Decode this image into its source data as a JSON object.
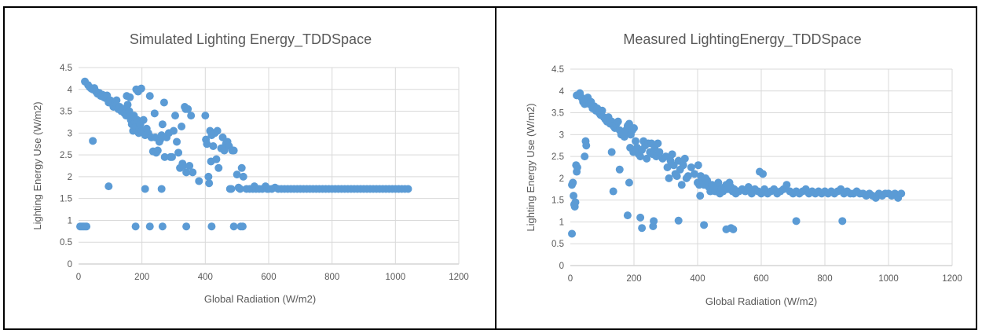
{
  "chart_data": [
    {
      "type": "scatter",
      "title": "Simulated Lighting Energy_TDDSpace",
      "xlabel": "Global Radiation (W/m2)",
      "ylabel": "Lighting Energy Use (W/m2)",
      "xlim": [
        0,
        1200
      ],
      "ylim": [
        0,
        4.5
      ],
      "xticks": [
        "0",
        "200",
        "400",
        "600",
        "800",
        "1000",
        "1200"
      ],
      "yticks": [
        "0",
        "0.5",
        "1",
        "1.5",
        "2",
        "2.5",
        "3",
        "3.5",
        "4",
        "4.5"
      ],
      "grid": true,
      "marker_color": "#5b9bd5",
      "points": [
        [
          20,
          4.18
        ],
        [
          30,
          4.1
        ],
        [
          35,
          4.05
        ],
        [
          40,
          4.02
        ],
        [
          45,
          4.0
        ],
        [
          50,
          4.03
        ],
        [
          55,
          3.95
        ],
        [
          60,
          3.9
        ],
        [
          65,
          3.92
        ],
        [
          70,
          3.85
        ],
        [
          75,
          3.88
        ],
        [
          80,
          3.82
        ],
        [
          85,
          3.8
        ],
        [
          90,
          3.86
        ],
        [
          95,
          3.7
        ],
        [
          100,
          3.75
        ],
        [
          105,
          3.68
        ],
        [
          110,
          3.6
        ],
        [
          115,
          3.7
        ],
        [
          120,
          3.75
        ],
        [
          125,
          3.55
        ],
        [
          130,
          3.6
        ],
        [
          135,
          3.5
        ],
        [
          140,
          3.55
        ],
        [
          145,
          3.45
        ],
        [
          150,
          3.4
        ],
        [
          152,
          3.85
        ],
        [
          155,
          3.65
        ],
        [
          160,
          3.5
        ],
        [
          162,
          3.82
        ],
        [
          165,
          3.3
        ],
        [
          168,
          3.2
        ],
        [
          170,
          3.35
        ],
        [
          172,
          3.05
        ],
        [
          175,
          3.4
        ],
        [
          178,
          3.25
        ],
        [
          180,
          3.15
        ],
        [
          182,
          4.0
        ],
        [
          185,
          3.3
        ],
        [
          188,
          3.95
        ],
        [
          190,
          3.0
        ],
        [
          192,
          3.1
        ],
        [
          195,
          3.2
        ],
        [
          198,
          4.02
        ],
        [
          200,
          3.05
        ],
        [
          205,
          3.3
        ],
        [
          210,
          2.95
        ],
        [
          215,
          3.1
        ],
        [
          220,
          3.0
        ],
        [
          225,
          3.85
        ],
        [
          230,
          2.9
        ],
        [
          235,
          2.58
        ],
        [
          240,
          3.45
        ],
        [
          242,
          2.9
        ],
        [
          245,
          2.55
        ],
        [
          250,
          2.6
        ],
        [
          255,
          2.8
        ],
        [
          258,
          2.85
        ],
        [
          262,
          2.95
        ],
        [
          265,
          3.2
        ],
        [
          270,
          3.7
        ],
        [
          272,
          2.45
        ],
        [
          278,
          2.9
        ],
        [
          285,
          3.0
        ],
        [
          290,
          2.45
        ],
        [
          295,
          2.45
        ],
        [
          300,
          3.05
        ],
        [
          305,
          3.4
        ],
        [
          310,
          2.8
        ],
        [
          315,
          2.55
        ],
        [
          320,
          2.2
        ],
        [
          325,
          3.15
        ],
        [
          328,
          2.3
        ],
        [
          330,
          2.25
        ],
        [
          335,
          3.6
        ],
        [
          338,
          3.55
        ],
        [
          340,
          2.1
        ],
        [
          345,
          3.55
        ],
        [
          350,
          2.25
        ],
        [
          355,
          3.4
        ],
        [
          360,
          2.1
        ],
        [
          380,
          1.9
        ],
        [
          400,
          3.4
        ],
        [
          402,
          2.85
        ],
        [
          405,
          2.75
        ],
        [
          410,
          2.0
        ],
        [
          412,
          1.85
        ],
        [
          415,
          3.05
        ],
        [
          418,
          2.35
        ],
        [
          420,
          2.95
        ],
        [
          425,
          2.7
        ],
        [
          430,
          3.0
        ],
        [
          435,
          2.4
        ],
        [
          438,
          3.05
        ],
        [
          442,
          2.2
        ],
        [
          450,
          2.65
        ],
        [
          455,
          2.9
        ],
        [
          460,
          2.6
        ],
        [
          465,
          2.75
        ],
        [
          470,
          2.8
        ],
        [
          475,
          2.7
        ],
        [
          478,
          1.72
        ],
        [
          482,
          1.72
        ],
        [
          485,
          2.6
        ],
        [
          490,
          2.6
        ],
        [
          500,
          2.05
        ],
        [
          505,
          1.75
        ],
        [
          510,
          1.72
        ],
        [
          515,
          2.2
        ],
        [
          520,
          2.0
        ],
        [
          530,
          1.72
        ],
        [
          540,
          1.72
        ],
        [
          550,
          1.72
        ],
        [
          555,
          1.78
        ],
        [
          560,
          1.72
        ],
        [
          570,
          1.72
        ],
        [
          580,
          1.72
        ],
        [
          590,
          1.78
        ],
        [
          595,
          1.72
        ],
        [
          600,
          1.72
        ],
        [
          610,
          1.72
        ],
        [
          620,
          1.75
        ],
        [
          630,
          1.72
        ],
        [
          640,
          1.72
        ],
        [
          650,
          1.72
        ],
        [
          660,
          1.72
        ],
        [
          670,
          1.72
        ],
        [
          680,
          1.72
        ],
        [
          690,
          1.72
        ],
        [
          700,
          1.72
        ],
        [
          710,
          1.72
        ],
        [
          720,
          1.72
        ],
        [
          730,
          1.72
        ],
        [
          740,
          1.72
        ],
        [
          750,
          1.72
        ],
        [
          760,
          1.72
        ],
        [
          770,
          1.72
        ],
        [
          780,
          1.72
        ],
        [
          790,
          1.72
        ],
        [
          800,
          1.72
        ],
        [
          810,
          1.72
        ],
        [
          820,
          1.72
        ],
        [
          830,
          1.72
        ],
        [
          840,
          1.72
        ],
        [
          850,
          1.72
        ],
        [
          860,
          1.72
        ],
        [
          870,
          1.72
        ],
        [
          880,
          1.72
        ],
        [
          890,
          1.72
        ],
        [
          900,
          1.72
        ],
        [
          910,
          1.72
        ],
        [
          920,
          1.72
        ],
        [
          930,
          1.72
        ],
        [
          940,
          1.72
        ],
        [
          950,
          1.72
        ],
        [
          960,
          1.72
        ],
        [
          970,
          1.72
        ],
        [
          980,
          1.72
        ],
        [
          990,
          1.72
        ],
        [
          1000,
          1.72
        ],
        [
          1010,
          1.72
        ],
        [
          1020,
          1.72
        ],
        [
          1030,
          1.72
        ],
        [
          1040,
          1.72
        ],
        [
          45,
          2.82
        ],
        [
          95,
          1.78
        ],
        [
          210,
          1.72
        ],
        [
          262,
          1.72
        ],
        [
          5,
          0.86
        ],
        [
          10,
          0.86
        ],
        [
          15,
          0.86
        ],
        [
          20,
          0.86
        ],
        [
          25,
          0.86
        ],
        [
          180,
          0.86
        ],
        [
          225,
          0.86
        ],
        [
          265,
          0.86
        ],
        [
          340,
          0.86
        ],
        [
          420,
          0.86
        ],
        [
          490,
          0.86
        ],
        [
          512,
          0.86
        ],
        [
          518,
          0.86
        ]
      ]
    },
    {
      "type": "scatter",
      "title": "Measured LightingEnergy_TDDSpace",
      "xlabel": "Global Radiation (W/m2)",
      "ylabel": "Lighting Energy Use (W/m2)",
      "xlim": [
        0,
        1200
      ],
      "ylim": [
        0,
        4.5
      ],
      "xticks": [
        "0",
        "200",
        "400",
        "600",
        "800",
        "1000",
        "1200"
      ],
      "yticks": [
        "0",
        "0.5",
        "1",
        "1.5",
        "2",
        "2.5",
        "3",
        "3.5",
        "4",
        "4.5"
      ],
      "grid": true,
      "marker_color": "#5b9bd5",
      "points": [
        [
          20,
          3.9
        ],
        [
          30,
          3.95
        ],
        [
          35,
          3.85
        ],
        [
          40,
          3.75
        ],
        [
          45,
          3.7
        ],
        [
          50,
          3.8
        ],
        [
          55,
          3.85
        ],
        [
          60,
          3.7
        ],
        [
          65,
          3.75
        ],
        [
          70,
          3.6
        ],
        [
          75,
          3.65
        ],
        [
          80,
          3.55
        ],
        [
          85,
          3.6
        ],
        [
          90,
          3.5
        ],
        [
          95,
          3.45
        ],
        [
          100,
          3.55
        ],
        [
          105,
          3.4
        ],
        [
          110,
          3.35
        ],
        [
          115,
          3.3
        ],
        [
          120,
          3.4
        ],
        [
          125,
          3.25
        ],
        [
          130,
          3.3
        ],
        [
          135,
          3.2
        ],
        [
          140,
          3.15
        ],
        [
          145,
          3.25
        ],
        [
          150,
          3.3
        ],
        [
          155,
          3.1
        ],
        [
          160,
          3.0
        ],
        [
          165,
          3.05
        ],
        [
          170,
          2.95
        ],
        [
          175,
          3.1
        ],
        [
          180,
          3.2
        ],
        [
          185,
          3.25
        ],
        [
          188,
          2.7
        ],
        [
          190,
          3.0
        ],
        [
          195,
          3.1
        ],
        [
          198,
          2.6
        ],
        [
          200,
          3.15
        ],
        [
          205,
          2.85
        ],
        [
          210,
          2.7
        ],
        [
          215,
          2.55
        ],
        [
          220,
          2.5
        ],
        [
          225,
          2.65
        ],
        [
          230,
          2.85
        ],
        [
          235,
          2.75
        ],
        [
          240,
          2.45
        ],
        [
          245,
          2.8
        ],
        [
          250,
          2.6
        ],
        [
          255,
          2.8
        ],
        [
          260,
          2.55
        ],
        [
          265,
          2.7
        ],
        [
          270,
          2.5
        ],
        [
          275,
          2.8
        ],
        [
          280,
          2.6
        ],
        [
          290,
          2.45
        ],
        [
          300,
          2.5
        ],
        [
          305,
          2.25
        ],
        [
          310,
          2.0
        ],
        [
          315,
          2.4
        ],
        [
          320,
          2.55
        ],
        [
          325,
          2.3
        ],
        [
          330,
          2.1
        ],
        [
          335,
          2.05
        ],
        [
          340,
          2.4
        ],
        [
          345,
          2.2
        ],
        [
          350,
          1.85
        ],
        [
          355,
          2.3
        ],
        [
          360,
          2.45
        ],
        [
          365,
          2.0
        ],
        [
          370,
          2.05
        ],
        [
          380,
          2.25
        ],
        [
          390,
          2.1
        ],
        [
          400,
          1.9
        ],
        [
          402,
          2.3
        ],
        [
          405,
          1.85
        ],
        [
          408,
          1.6
        ],
        [
          410,
          2.05
        ],
        [
          415,
          1.95
        ],
        [
          420,
          1.85
        ],
        [
          425,
          2.0
        ],
        [
          430,
          1.95
        ],
        [
          435,
          1.8
        ],
        [
          440,
          1.7
        ],
        [
          445,
          1.85
        ],
        [
          450,
          1.75
        ],
        [
          455,
          1.7
        ],
        [
          460,
          1.8
        ],
        [
          465,
          1.9
        ],
        [
          470,
          1.65
        ],
        [
          475,
          1.75
        ],
        [
          480,
          1.7
        ],
        [
          485,
          1.8
        ],
        [
          490,
          1.85
        ],
        [
          495,
          1.75
        ],
        [
          500,
          1.9
        ],
        [
          505,
          1.8
        ],
        [
          510,
          1.7
        ],
        [
          515,
          1.75
        ],
        [
          520,
          1.65
        ],
        [
          530,
          1.7
        ],
        [
          540,
          1.75
        ],
        [
          550,
          1.7
        ],
        [
          560,
          1.8
        ],
        [
          570,
          1.65
        ],
        [
          580,
          1.75
        ],
        [
          590,
          1.7
        ],
        [
          595,
          2.15
        ],
        [
          600,
          1.65
        ],
        [
          605,
          2.1
        ],
        [
          610,
          1.75
        ],
        [
          620,
          1.65
        ],
        [
          630,
          1.7
        ],
        [
          640,
          1.75
        ],
        [
          650,
          1.65
        ],
        [
          660,
          1.7
        ],
        [
          670,
          1.75
        ],
        [
          680,
          1.85
        ],
        [
          690,
          1.7
        ],
        [
          700,
          1.65
        ],
        [
          710,
          1.7
        ],
        [
          720,
          1.65
        ],
        [
          730,
          1.7
        ],
        [
          740,
          1.75
        ],
        [
          750,
          1.65
        ],
        [
          760,
          1.7
        ],
        [
          770,
          1.65
        ],
        [
          780,
          1.7
        ],
        [
          790,
          1.65
        ],
        [
          800,
          1.7
        ],
        [
          810,
          1.65
        ],
        [
          820,
          1.7
        ],
        [
          830,
          1.65
        ],
        [
          840,
          1.7
        ],
        [
          850,
          1.75
        ],
        [
          860,
          1.65
        ],
        [
          870,
          1.7
        ],
        [
          880,
          1.65
        ],
        [
          890,
          1.65
        ],
        [
          900,
          1.7
        ],
        [
          910,
          1.65
        ],
        [
          920,
          1.65
        ],
        [
          930,
          1.6
        ],
        [
          940,
          1.65
        ],
        [
          950,
          1.6
        ],
        [
          960,
          1.55
        ],
        [
          970,
          1.65
        ],
        [
          980,
          1.6
        ],
        [
          990,
          1.65
        ],
        [
          1000,
          1.65
        ],
        [
          1010,
          1.6
        ],
        [
          1020,
          1.65
        ],
        [
          1030,
          1.55
        ],
        [
          1040,
          1.65
        ],
        [
          5,
          1.85
        ],
        [
          8,
          1.9
        ],
        [
          10,
          1.6
        ],
        [
          12,
          1.4
        ],
        [
          14,
          1.35
        ],
        [
          16,
          1.45
        ],
        [
          18,
          2.3
        ],
        [
          20,
          2.15
        ],
        [
          22,
          2.25
        ],
        [
          45,
          2.5
        ],
        [
          48,
          2.85
        ],
        [
          50,
          2.75
        ],
        [
          130,
          2.6
        ],
        [
          135,
          1.7
        ],
        [
          155,
          2.2
        ],
        [
          185,
          1.9
        ],
        [
          5,
          0.73
        ],
        [
          180,
          1.15
        ],
        [
          220,
          1.1
        ],
        [
          225,
          0.86
        ],
        [
          260,
          0.9
        ],
        [
          262,
          1.02
        ],
        [
          340,
          1.03
        ],
        [
          420,
          0.93
        ],
        [
          490,
          0.83
        ],
        [
          505,
          0.86
        ],
        [
          512,
          0.83
        ],
        [
          710,
          1.02
        ],
        [
          855,
          1.02
        ]
      ]
    }
  ]
}
